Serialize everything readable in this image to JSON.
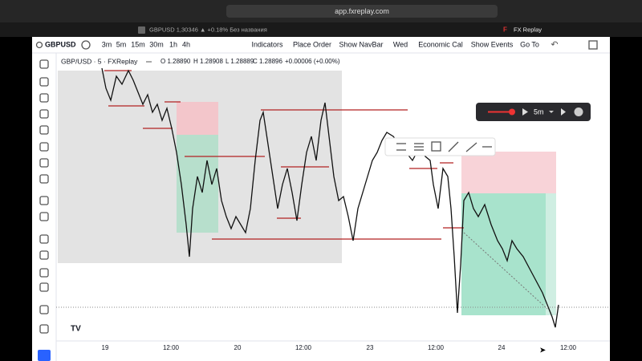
{
  "browser": {
    "url": "app.fxreplay.com",
    "tabs": [
      "GBPUSD 1,30346 ▲ +0.18% Без названия",
      "FX Replay"
    ]
  },
  "toolbar": {
    "symbol": "GBPUSD",
    "timeframes": [
      "3m",
      "5m",
      "15m",
      "30m",
      "1h",
      "4h"
    ],
    "buttons": [
      "Indicators",
      "Place Order",
      "Show NavBar",
      "Wed",
      "Economic Cal",
      "Show Events",
      "Go To"
    ]
  },
  "legend": {
    "title": "GBP/USD · 5 · FXReplay",
    "open": "O 1.28890",
    "high": "H 1.28908",
    "low": "L 1.28889",
    "close": "C 1.28896",
    "change": "+0.00006 (+0.00%)"
  },
  "x_axis": {
    "labels": [
      "19",
      "12:00",
      "20",
      "12:00",
      "23",
      "12:00",
      "24",
      "12:00"
    ]
  },
  "replay": {
    "timeframe": "5m"
  }
}
